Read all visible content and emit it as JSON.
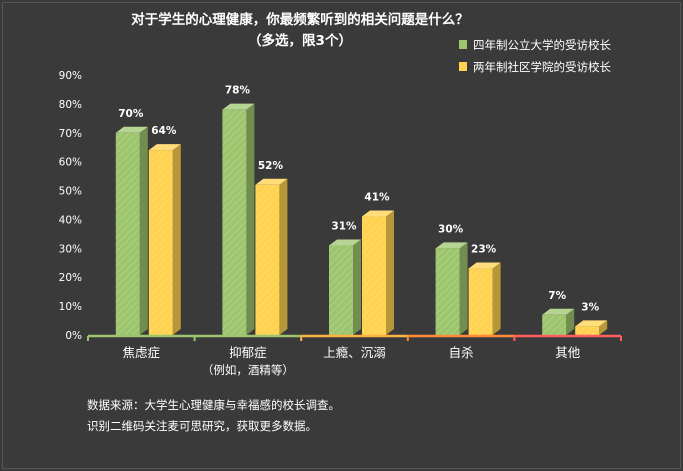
{
  "chart_data": {
    "type": "bar",
    "title": "对于学生的心理健康，你最频繁听到的相关问题是什么？",
    "subtitle": "（多选，限3个）",
    "categories": [
      "焦虑症",
      "抑郁症",
      "上瘾、沉溺",
      "自杀",
      "其他"
    ],
    "category_sublabels": [
      "",
      "（例如，酒精等）",
      "",
      "",
      ""
    ],
    "series": [
      {
        "name": "四年制公立大学的受访校长",
        "values": [
          70,
          78,
          31,
          30,
          7
        ],
        "value_labels": [
          "70%",
          "78%",
          "31%",
          "30%",
          "7%"
        ],
        "color": "#9dc56e"
      },
      {
        "name": "两年制社区学院的受访校长",
        "values": [
          64,
          52,
          41,
          23,
          3
        ],
        "value_labels": [
          "64%",
          "52%",
          "41%",
          "23%",
          "3%"
        ],
        "color": "#ffd24f"
      }
    ],
    "ylim": [
      0,
      90
    ],
    "yticks": [
      "0%",
      "10%",
      "20%",
      "30%",
      "40%",
      "50%",
      "60%",
      "70%",
      "80%",
      "90%"
    ],
    "legend_position": "top-right",
    "grid": false,
    "axis_colors": [
      "#9dc56e",
      "#9dc56e",
      "#ffb23f",
      "#ff8a3a",
      "#ff5f5f"
    ]
  },
  "notes": [
    "数据来源：大学生心理健康与幸福感的校长调查。",
    "识别二维码关注麦可思研究，获取更多数据。"
  ]
}
